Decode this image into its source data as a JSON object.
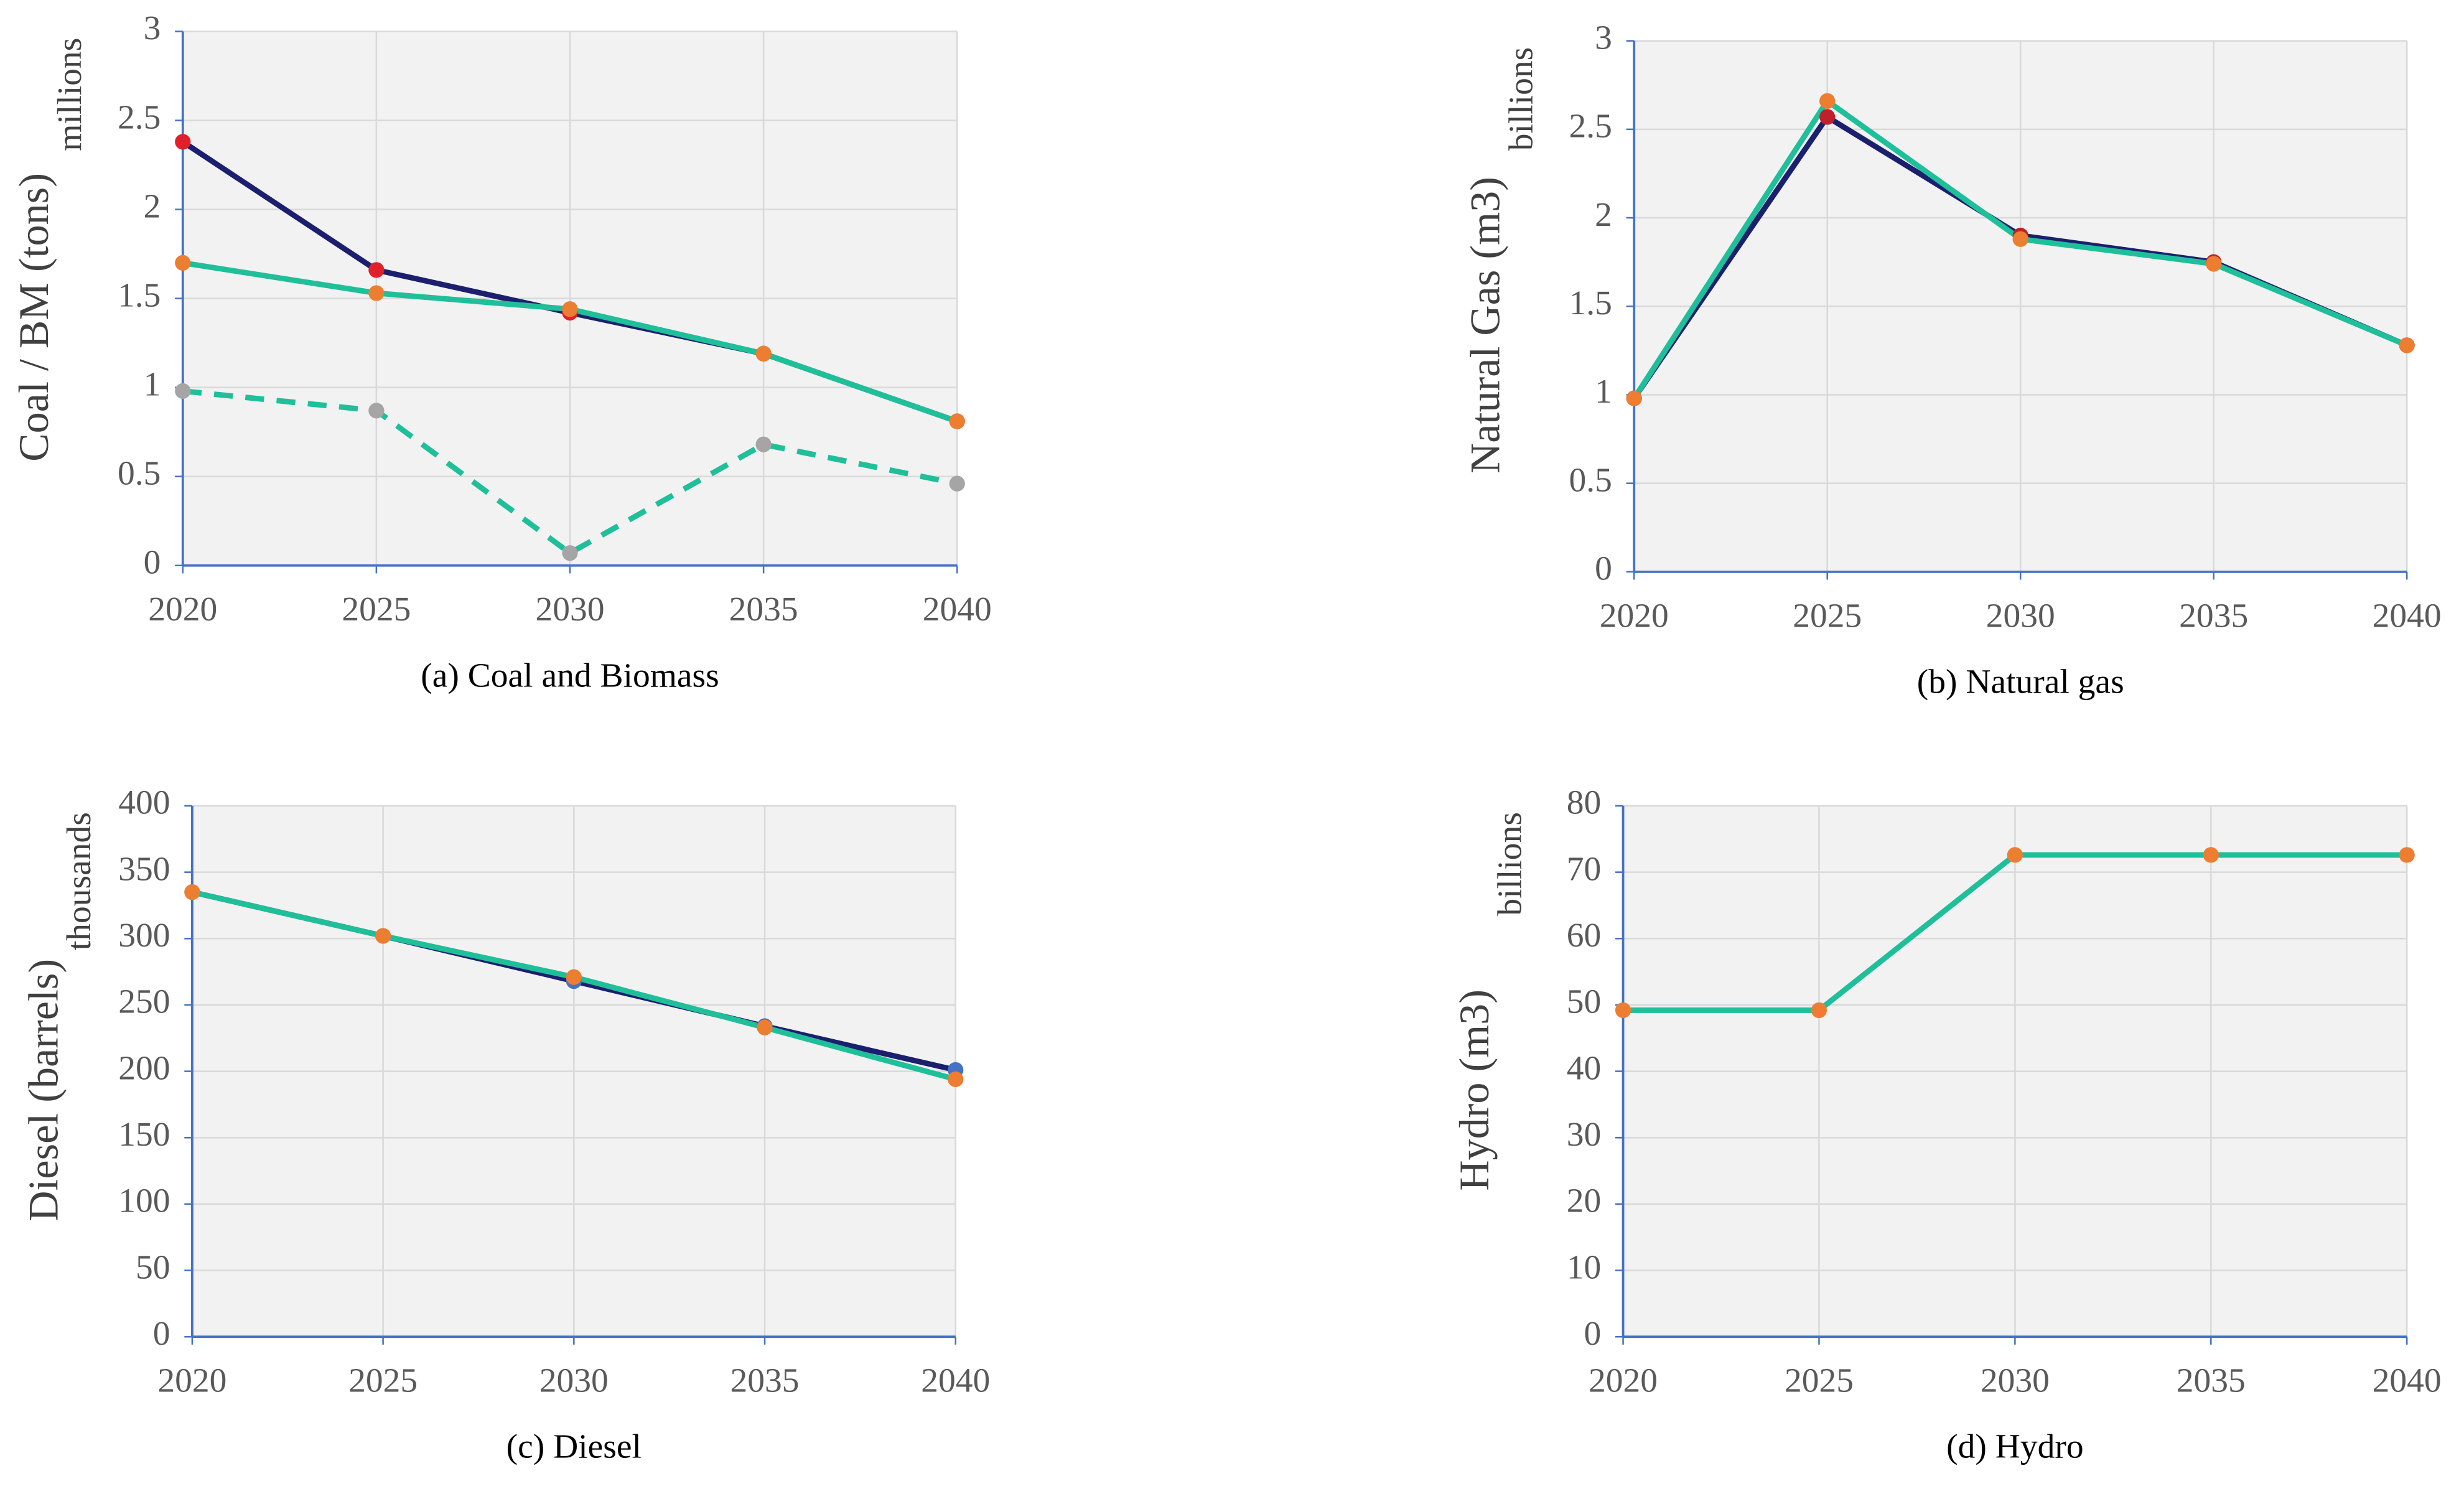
{
  "chart_data": [
    {
      "type": "line",
      "title": "(a) Coal and Biomass",
      "ylabel": "Coal / BM (tons)",
      "unit_label": "millions",
      "x": [
        2020,
        2025,
        2030,
        2035,
        2040
      ],
      "xlim": [
        2020,
        2040
      ],
      "xticks": [
        2020,
        2025,
        2030,
        2035,
        2040
      ],
      "ylim": [
        0,
        3
      ],
      "yticks": [
        0,
        0.5,
        1,
        1.5,
        2,
        2.5,
        3
      ],
      "grid": true,
      "series": [
        {
          "color": "#1b1f6e",
          "marker_color": "#e0202a",
          "dashed": false,
          "values": [
            2.38,
            1.66,
            1.42,
            1.19,
            0.81
          ]
        },
        {
          "color": "#1fbf9a",
          "marker_color": "#ed7d31",
          "dashed": false,
          "values": [
            1.7,
            1.53,
            1.44,
            1.19,
            0.81
          ]
        },
        {
          "color": "#1fbf9a",
          "marker_color": "#a5a5a5",
          "dashed": true,
          "values": [
            0.98,
            0.87,
            0.07,
            0.68,
            0.46
          ]
        }
      ]
    },
    {
      "type": "line",
      "title": "(b) Natural gas",
      "ylabel": "Natural Gas (m3)",
      "unit_label": "billions",
      "x": [
        2020,
        2025,
        2030,
        2035,
        2040
      ],
      "xlim": [
        2020,
        2040
      ],
      "xticks": [
        2020,
        2025,
        2030,
        2035,
        2040
      ],
      "ylim": [
        0,
        3
      ],
      "yticks": [
        0,
        0.5,
        1,
        1.5,
        2,
        2.5,
        3
      ],
      "grid": true,
      "series": [
        {
          "color": "#1b1f6e",
          "marker_color": "#c0202a",
          "dashed": false,
          "values": [
            0.98,
            2.57,
            1.9,
            1.75,
            1.28
          ]
        },
        {
          "color": "#1fbf9a",
          "marker_color": "#ed7d31",
          "dashed": false,
          "values": [
            0.98,
            2.66,
            1.88,
            1.74,
            1.28
          ]
        }
      ]
    },
    {
      "type": "line",
      "title": "(c) Diesel",
      "ylabel": "Diesel (barrels)",
      "unit_label": "thousands",
      "x": [
        2020,
        2025,
        2030,
        2035,
        2040
      ],
      "xlim": [
        2020,
        2040
      ],
      "xticks": [
        2020,
        2025,
        2030,
        2035,
        2040
      ],
      "ylim": [
        0,
        400
      ],
      "yticks": [
        0,
        50,
        100,
        150,
        200,
        250,
        300,
        350,
        400
      ],
      "grid": true,
      "series": [
        {
          "color": "#1b1f6e",
          "marker_color": "#4472c4",
          "dashed": false,
          "values": [
            335,
            302,
            268,
            234,
            201
          ]
        },
        {
          "color": "#1fbf9a",
          "marker_color": "#ed7d31",
          "dashed": false,
          "values": [
            335,
            302,
            271,
            233,
            194
          ]
        }
      ]
    },
    {
      "type": "line",
      "title": "(d) Hydro",
      "ylabel": "Hydro (m3)",
      "unit_label": "billions",
      "x": [
        2020,
        2025,
        2030,
        2035,
        2040
      ],
      "xlim": [
        2020,
        2040
      ],
      "xticks": [
        2020,
        2025,
        2030,
        2035,
        2040
      ],
      "ylim": [
        0,
        80
      ],
      "yticks": [
        0,
        10,
        20,
        30,
        40,
        50,
        60,
        70,
        80
      ],
      "grid": true,
      "series": [
        {
          "color": "#1fbf9a",
          "marker_color": "#ed7d31",
          "dashed": false,
          "values": [
            49.2,
            49.2,
            72.6,
            72.6,
            72.6
          ]
        }
      ]
    }
  ]
}
